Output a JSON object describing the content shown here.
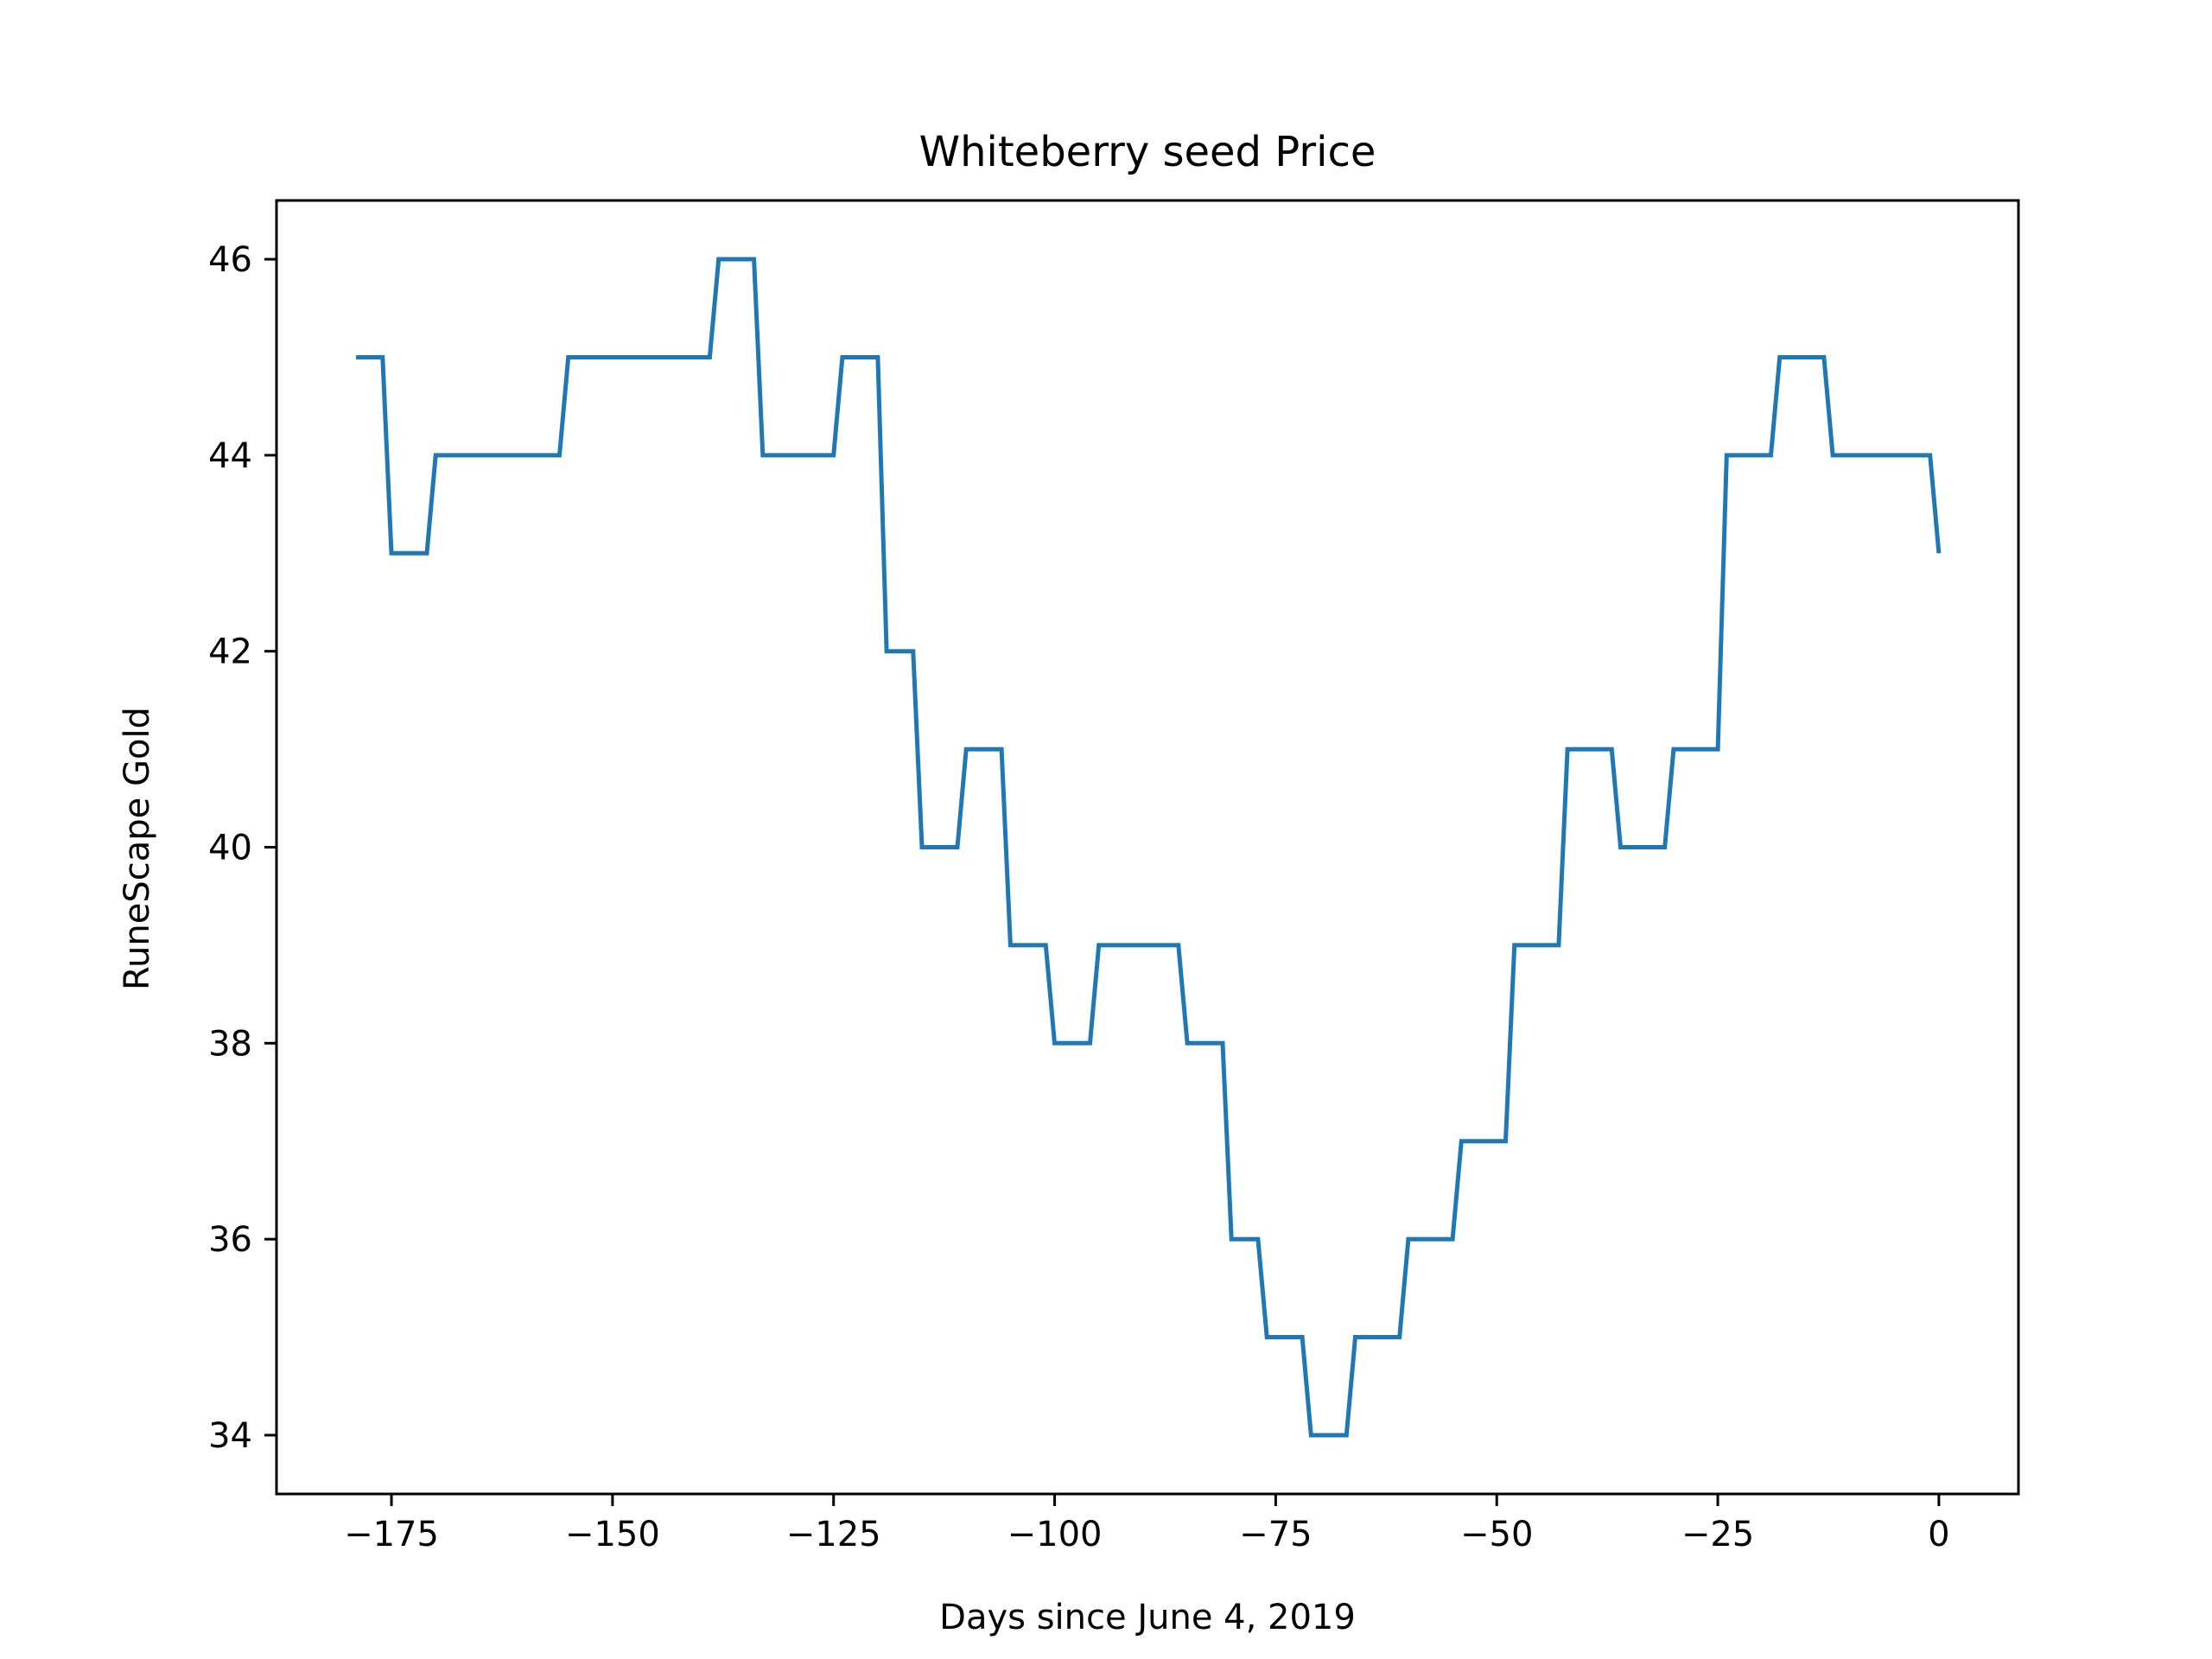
{
  "chart_data": {
    "type": "line",
    "title": "Whiteberry seed Price",
    "xlabel": "Days since June 4, 2019",
    "ylabel": "RuneScape Gold",
    "xlim": [
      -188,
      9
    ],
    "ylim": [
      33.4,
      46.6
    ],
    "xticks": [
      -175,
      -150,
      -125,
      -100,
      -75,
      -50,
      -25,
      0
    ],
    "xtick_labels": [
      "−175",
      "−150",
      "−125",
      "−100",
      "−75",
      "−50",
      "−25",
      "0"
    ],
    "yticks": [
      34,
      36,
      38,
      40,
      42,
      44,
      46
    ],
    "ytick_labels": [
      "34",
      "36",
      "38",
      "40",
      "42",
      "44",
      "46"
    ],
    "grid": false,
    "line_color": "#1f77b4",
    "series": [
      {
        "x": [
          -179,
          -176,
          -175,
          -171,
          -170,
          -156,
          -155,
          -139,
          -138,
          -134,
          -133,
          -125,
          -124,
          -120,
          -119,
          -116,
          -115,
          -111,
          -110,
          -106,
          -105,
          -101,
          -100,
          -96,
          -95,
          -86,
          -85,
          -81,
          -80,
          -77,
          -76,
          -72,
          -71,
          -67,
          -66,
          -61,
          -60,
          -55,
          -54,
          -49,
          -48,
          -43,
          -42,
          -37,
          -36,
          -31,
          -30,
          -25,
          -24,
          -19,
          -18,
          -13,
          -12,
          -1,
          0
        ],
        "y": [
          45,
          45,
          43,
          43,
          44,
          44,
          45,
          45,
          46,
          46,
          44,
          44,
          45,
          45,
          42,
          42,
          40,
          40,
          41,
          41,
          39,
          39,
          38,
          38,
          39,
          39,
          38,
          38,
          36,
          36,
          35,
          35,
          34,
          34,
          35,
          35,
          36,
          36,
          37,
          37,
          39,
          39,
          41,
          41,
          40,
          40,
          41,
          41,
          44,
          44,
          45,
          45,
          44,
          44,
          43
        ]
      }
    ]
  }
}
